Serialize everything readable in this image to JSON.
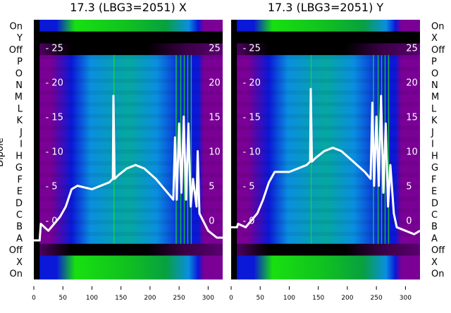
{
  "chart_data": [
    {
      "type": "heatmap",
      "title": "17.3 (LBG3=2051) X",
      "ylabel": "Dipole",
      "row_labels": [
        "On",
        "Y",
        "Off",
        "P",
        "O",
        "N",
        "M",
        "L",
        "K",
        "J",
        "I",
        "H",
        "G",
        "F",
        "E",
        "D",
        "C",
        "B",
        "A",
        "Off",
        "X",
        "On"
      ],
      "xticks": [
        0,
        50,
        100,
        150,
        200,
        250,
        300
      ],
      "xlim": [
        0,
        325
      ],
      "inner_yticks": [
        0,
        5,
        10,
        15,
        20,
        25
      ],
      "inner_ylim": [
        -8.5,
        29
      ],
      "line_series": {
        "x": [
          0,
          10,
          12,
          25,
          35,
          45,
          55,
          65,
          75,
          100,
          130,
          136,
          137,
          139,
          145,
          160,
          175,
          190,
          210,
          230,
          240,
          243,
          246,
          250,
          254,
          258,
          262,
          266,
          270,
          274,
          280,
          282,
          285,
          300,
          315,
          325
        ],
        "y": [
          -2.9,
          -2.9,
          -0.5,
          -1.5,
          -0.5,
          0.5,
          2,
          4.5,
          5,
          4.5,
          5.5,
          6,
          18,
          6,
          6.5,
          7.5,
          8,
          7.5,
          6,
          4,
          3,
          12,
          3,
          14,
          4,
          15,
          3,
          14,
          2,
          6,
          2,
          10,
          1,
          -1.5,
          -2.5,
          -2.5
        ]
      }
    },
    {
      "type": "heatmap",
      "title": "17.3 (LBG3=2051) Y",
      "row_labels": [
        "On",
        "X",
        "Off",
        "P",
        "O",
        "N",
        "M",
        "L",
        "K",
        "J",
        "I",
        "H",
        "G",
        "F",
        "E",
        "D",
        "C",
        "B",
        "A",
        "Off",
        "X",
        "On"
      ],
      "xticks": [
        0,
        50,
        100,
        150,
        200,
        250,
        300
      ],
      "xlim": [
        0,
        325
      ],
      "inner_yticks": [
        0,
        5,
        10,
        15,
        20,
        25
      ],
      "inner_ylim": [
        -8.5,
        29
      ],
      "line_series": {
        "x": [
          0,
          10,
          12,
          25,
          35,
          45,
          55,
          65,
          75,
          100,
          130,
          136,
          137,
          139,
          145,
          160,
          175,
          190,
          210,
          230,
          240,
          243,
          246,
          250,
          254,
          258,
          262,
          266,
          270,
          274,
          280,
          285,
          300,
          315,
          325
        ],
        "y": [
          -1,
          -1,
          -0.5,
          -1,
          0,
          1,
          3,
          5.5,
          7,
          7,
          8,
          8.5,
          19,
          8.5,
          9,
          10,
          10.5,
          10,
          8.5,
          7,
          6,
          17,
          5,
          15,
          5,
          18,
          4,
          14,
          2,
          8,
          1,
          -1,
          -1.5,
          -2,
          -1.5
        ]
      }
    }
  ],
  "colors": {
    "purple": "#7a0096",
    "blue": "#0a18d8",
    "lightblue": "#0a8ee0",
    "teal": "#06a8a0",
    "green": "#18e010",
    "black": "#000000",
    "line": "#ffffff"
  }
}
